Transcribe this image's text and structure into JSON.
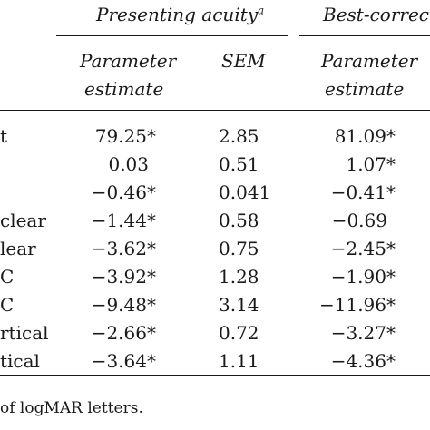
{
  "header": {
    "group1_label": "Presenting acuity",
    "group1_sup": "a",
    "group2_label": "Best-correcte",
    "col_param_line1": "Parameter",
    "col_param_line2": "estimate",
    "col_sem": "SEM",
    "col2_param_line1": "Parameter",
    "col2_param_line2": "estimate"
  },
  "rows": [
    {
      "label": "t",
      "p1": "79.25*",
      "sem": "2.85",
      "p2": "81.09*"
    },
    {
      "label": "",
      "p1": "0.03",
      "sem": "0.51",
      "p2": "1.07*"
    },
    {
      "label": "",
      "p1": "−0.46*",
      "sem": "0.041",
      "p2": "−0.41*"
    },
    {
      "label": "clear",
      "p1": "−1.44*",
      "sem": "0.58",
      "p2": "−0.69"
    },
    {
      "label": "lear",
      "p1": "−3.62*",
      "sem": "0.75",
      "p2": "−2.45*"
    },
    {
      "label": "C",
      "p1": "−3.92*",
      "sem": "1.28",
      "p2": "−1.90*"
    },
    {
      "label": "C",
      "p1": "−9.48*",
      "sem": "3.14",
      "p2": "−11.96*"
    },
    {
      "label": "rtical",
      "p1": "−2.66*",
      "sem": "0.72",
      "p2": "−3.27*"
    },
    {
      "label": "tical",
      "p1": "−3.64*",
      "sem": "1.11",
      "p2": "−4.36*"
    }
  ],
  "footnote": "of logMAR letters."
}
